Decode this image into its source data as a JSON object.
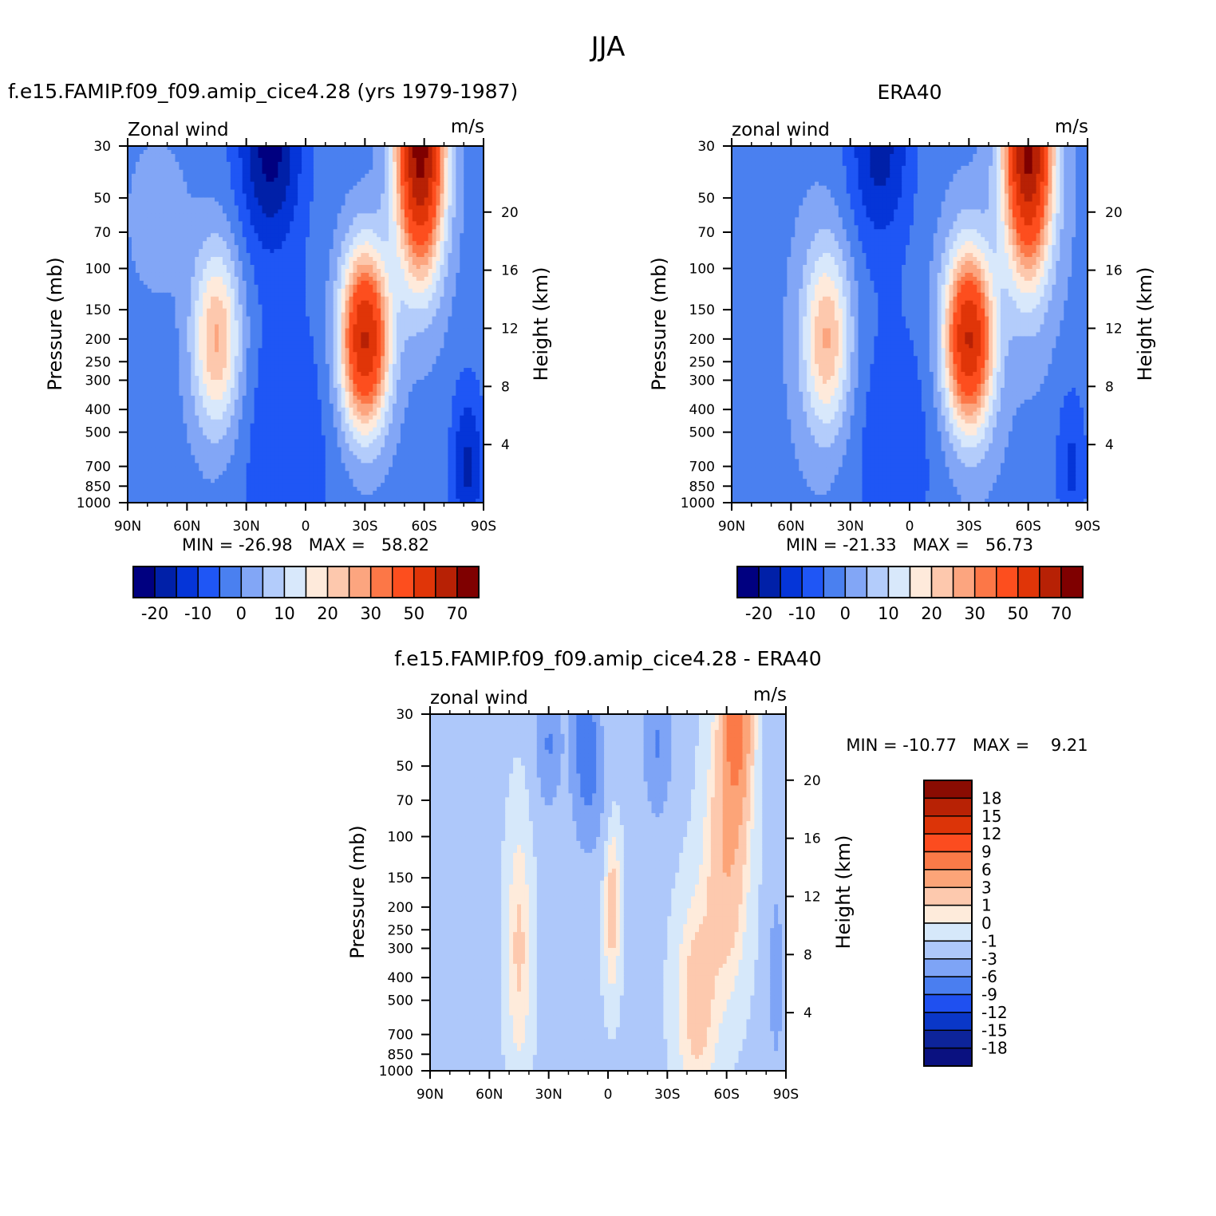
{
  "figure": {
    "season_title": "JJA"
  },
  "palettes": {
    "full": [
      "#000080",
      "#0020a8",
      "#0535d8",
      "#1f56f5",
      "#4a80f0",
      "#82a6f6",
      "#b3ccfb",
      "#d8e8fb",
      "#feeadb",
      "#fdc8ad",
      "#fca57f",
      "#fc7747",
      "#fd4e1e",
      "#e03508",
      "#b72105",
      "#7f0000"
    ],
    "diff": [
      "#0a1180",
      "#0d249a",
      "#0a37c8",
      "#1f50f0",
      "#4a7ef0",
      "#7ea4f6",
      "#aec8fa",
      "#d6e8fa",
      "#feebdb",
      "#fdc9ae",
      "#fca478",
      "#fb7a48",
      "#fc4c1f",
      "#dc3408",
      "#b82205",
      "#8a0c02"
    ]
  },
  "chart_data": [
    {
      "type": "contour",
      "panel_title": "f.e15.FAMIP.f09_f09.amip_cice4.28 (yrs 1979-1987)",
      "left_label": "Zonal wind",
      "right_label": "m/s",
      "ylabel": "Pressure (mb)",
      "ylabel_right": "Height (km)",
      "x_ticks": [
        "90N",
        "60N",
        "30N",
        "0",
        "30S",
        "60S",
        "90S"
      ],
      "x_range": [
        90,
        -90
      ],
      "y_ticks": [
        "30",
        "50",
        "70",
        "100",
        "150",
        "200",
        "250",
        "300",
        "400",
        "500",
        "700",
        "850",
        "1000"
      ],
      "y_range": [
        30,
        1000
      ],
      "y_scale": "log",
      "height_ticks": [
        "4",
        "8",
        "12",
        "16",
        "20"
      ],
      "stats_text": "MIN = -26.98   MAX =   58.82",
      "min": -26.98,
      "max": 58.82,
      "colorbar": "horizontal",
      "colorbar_labels": [
        "-20",
        "-10",
        "0",
        "10",
        "20",
        "30",
        "50",
        "70"
      ],
      "features": {
        "nh_jet": {
          "lat": 45,
          "p": 200,
          "peak": 22
        },
        "sh_jet": {
          "lat": -30,
          "p": 200,
          "peak": 50
        },
        "sh_strat_jet": {
          "lat": -60,
          "p": 30,
          "peak": 58
        },
        "tropical_easterly": {
          "lat": 18,
          "p": 30,
          "min": -27
        }
      }
    },
    {
      "type": "contour",
      "panel_title": "ERA40",
      "left_label": "zonal wind",
      "right_label": "m/s",
      "ylabel": "Pressure (mb)",
      "ylabel_right": "Height (km)",
      "x_ticks": [
        "90N",
        "60N",
        "30N",
        "0",
        "30S",
        "60S",
        "90S"
      ],
      "x_range": [
        90,
        -90
      ],
      "y_ticks": [
        "30",
        "50",
        "70",
        "100",
        "150",
        "200",
        "250",
        "300",
        "400",
        "500",
        "700",
        "850",
        "1000"
      ],
      "y_range": [
        30,
        1000
      ],
      "y_scale": "log",
      "height_ticks": [
        "4",
        "8",
        "12",
        "16",
        "20"
      ],
      "stats_text": "MIN = -21.33   MAX =   56.73",
      "min": -21.33,
      "max": 56.73,
      "colorbar": "horizontal",
      "colorbar_labels": [
        "-20",
        "-10",
        "0",
        "10",
        "20",
        "30",
        "50",
        "70"
      ],
      "features": {
        "nh_jet": {
          "lat": 42,
          "p": 200,
          "peak": 21
        },
        "sh_jet": {
          "lat": -30,
          "p": 200,
          "peak": 50
        },
        "sh_strat_jet": {
          "lat": -60,
          "p": 30,
          "peak": 56
        },
        "tropical_easterly": {
          "lat": 15,
          "p": 30,
          "min": -21
        }
      }
    },
    {
      "type": "contour",
      "panel_title": "f.e15.FAMIP.f09_f09.amip_cice4.28 - ERA40",
      "left_label": "zonal wind",
      "right_label": "m/s",
      "ylabel": "Pressure (mb)",
      "ylabel_right": "Height (km)",
      "x_ticks": [
        "90N",
        "60N",
        "30N",
        "0",
        "30S",
        "60S",
        "90S"
      ],
      "x_range": [
        90,
        -90
      ],
      "y_ticks": [
        "30",
        "50",
        "70",
        "100",
        "150",
        "200",
        "250",
        "300",
        "400",
        "500",
        "700",
        "850",
        "1000"
      ],
      "y_range": [
        30,
        1000
      ],
      "y_scale": "log",
      "height_ticks": [
        "4",
        "8",
        "12",
        "16",
        "20"
      ],
      "stats_text": "MIN = -10.77   MAX =    9.21",
      "min": -10.77,
      "max": 9.21,
      "colorbar": "vertical",
      "colorbar_labels": [
        "18",
        "15",
        "12",
        "9",
        "6",
        "3",
        "1",
        "0",
        "-1",
        "-3",
        "-6",
        "-9",
        "-12",
        "-15",
        "-18"
      ],
      "features": {
        "sh_strat_positive": {
          "lat": -65,
          "p": 30,
          "peak": 9
        },
        "nh_strat_negative": {
          "lat": 10,
          "p": 40,
          "min": -10
        }
      }
    }
  ]
}
